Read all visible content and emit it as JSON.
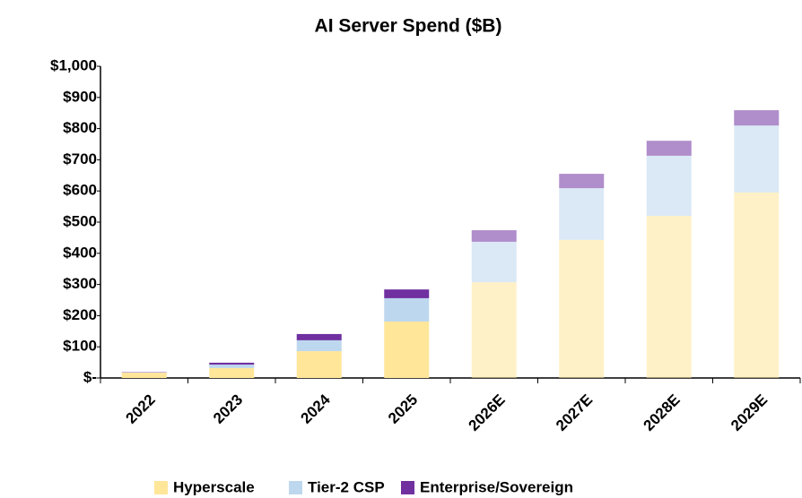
{
  "chart_data": {
    "type": "stacked_bar",
    "title": "AI Server Spend ($B)",
    "categories": [
      "2022",
      "2023",
      "2024",
      "2025",
      "2026E",
      "2027E",
      "2028E",
      "2029E"
    ],
    "series": [
      {
        "name": "Hyperscale",
        "color": "#ffe699",
        "values": [
          17,
          32,
          86,
          181,
          307,
          443,
          520,
          595
        ]
      },
      {
        "name": "Tier-2 CSP",
        "color": "#bdd7ee",
        "values": [
          1,
          11,
          35,
          75,
          130,
          166,
          193,
          215
        ]
      },
      {
        "name": "Enterprise/Sovereign",
        "color": "#7030a0",
        "values": [
          1,
          6,
          20,
          28,
          37,
          46,
          48,
          49
        ]
      }
    ],
    "ylim": [
      0,
      1000
    ],
    "yticks": [
      {
        "value": 0,
        "label": "$-"
      },
      {
        "value": 100,
        "label": "$100"
      },
      {
        "value": 200,
        "label": "$200"
      },
      {
        "value": 300,
        "label": "$300"
      },
      {
        "value": 400,
        "label": "$400"
      },
      {
        "value": 500,
        "label": "$500"
      },
      {
        "value": 600,
        "label": "$600"
      },
      {
        "value": 700,
        "label": "$700"
      },
      {
        "value": 800,
        "label": "$800"
      },
      {
        "value": 900,
        "label": "$900"
      },
      {
        "value": 1000,
        "label": "$1,000"
      }
    ],
    "grid": false,
    "legend": "bottom"
  }
}
